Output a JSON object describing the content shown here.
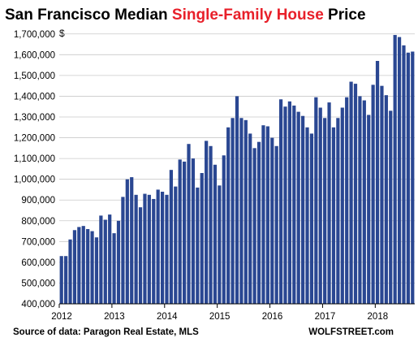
{
  "chart_data": {
    "type": "bar",
    "title_parts": [
      {
        "text": "San Francisco Median ",
        "color": "#000000"
      },
      {
        "text": "Single-Family House",
        "color": "#e8202a"
      },
      {
        "text": " Price",
        "color": "#000000"
      }
    ],
    "y_unit_label": "$",
    "ylim": [
      400000,
      1750000
    ],
    "y_ticks": [
      400000,
      500000,
      600000,
      700000,
      800000,
      900000,
      1000000,
      1100000,
      1200000,
      1300000,
      1400000,
      1500000,
      1600000,
      1700000
    ],
    "y_tick_labels": [
      "400,000",
      "500,000",
      "600,000",
      "700,000",
      "800,000",
      "900,000",
      "1,000,000",
      "1,100,000",
      "1,200,000",
      "1,300,000",
      "1,400,000",
      "1,500,000",
      "1,600,000",
      "1,700,000"
    ],
    "x_tick_labels": [
      "2012",
      "2013",
      "2014",
      "2015",
      "2016",
      "2017",
      "2018"
    ],
    "start_year": 2012,
    "bar_color": "#2a4792",
    "grid": "horizontal",
    "values": [
      630000,
      630000,
      710000,
      755000,
      770000,
      775000,
      760000,
      750000,
      720000,
      825000,
      805000,
      830000,
      740000,
      800000,
      915000,
      1000000,
      1010000,
      925000,
      865000,
      930000,
      925000,
      905000,
      950000,
      940000,
      925000,
      1045000,
      965000,
      1095000,
      1085000,
      1170000,
      1100000,
      960000,
      1030000,
      1185000,
      1160000,
      1070000,
      970000,
      1115000,
      1250000,
      1295000,
      1400000,
      1295000,
      1285000,
      1220000,
      1150000,
      1180000,
      1260000,
      1255000,
      1200000,
      1160000,
      1385000,
      1350000,
      1375000,
      1355000,
      1325000,
      1305000,
      1250000,
      1220000,
      1395000,
      1345000,
      1295000,
      1370000,
      1250000,
      1295000,
      1345000,
      1395000,
      1470000,
      1460000,
      1400000,
      1380000,
      1310000,
      1455000,
      1570000,
      1450000,
      1405000,
      1330000,
      1695000,
      1685000,
      1645000,
      1610000,
      1615000
    ],
    "source_note": "Source of data: Paragon Real Estate, MLS",
    "brand": "WOLFSTREET.com"
  }
}
